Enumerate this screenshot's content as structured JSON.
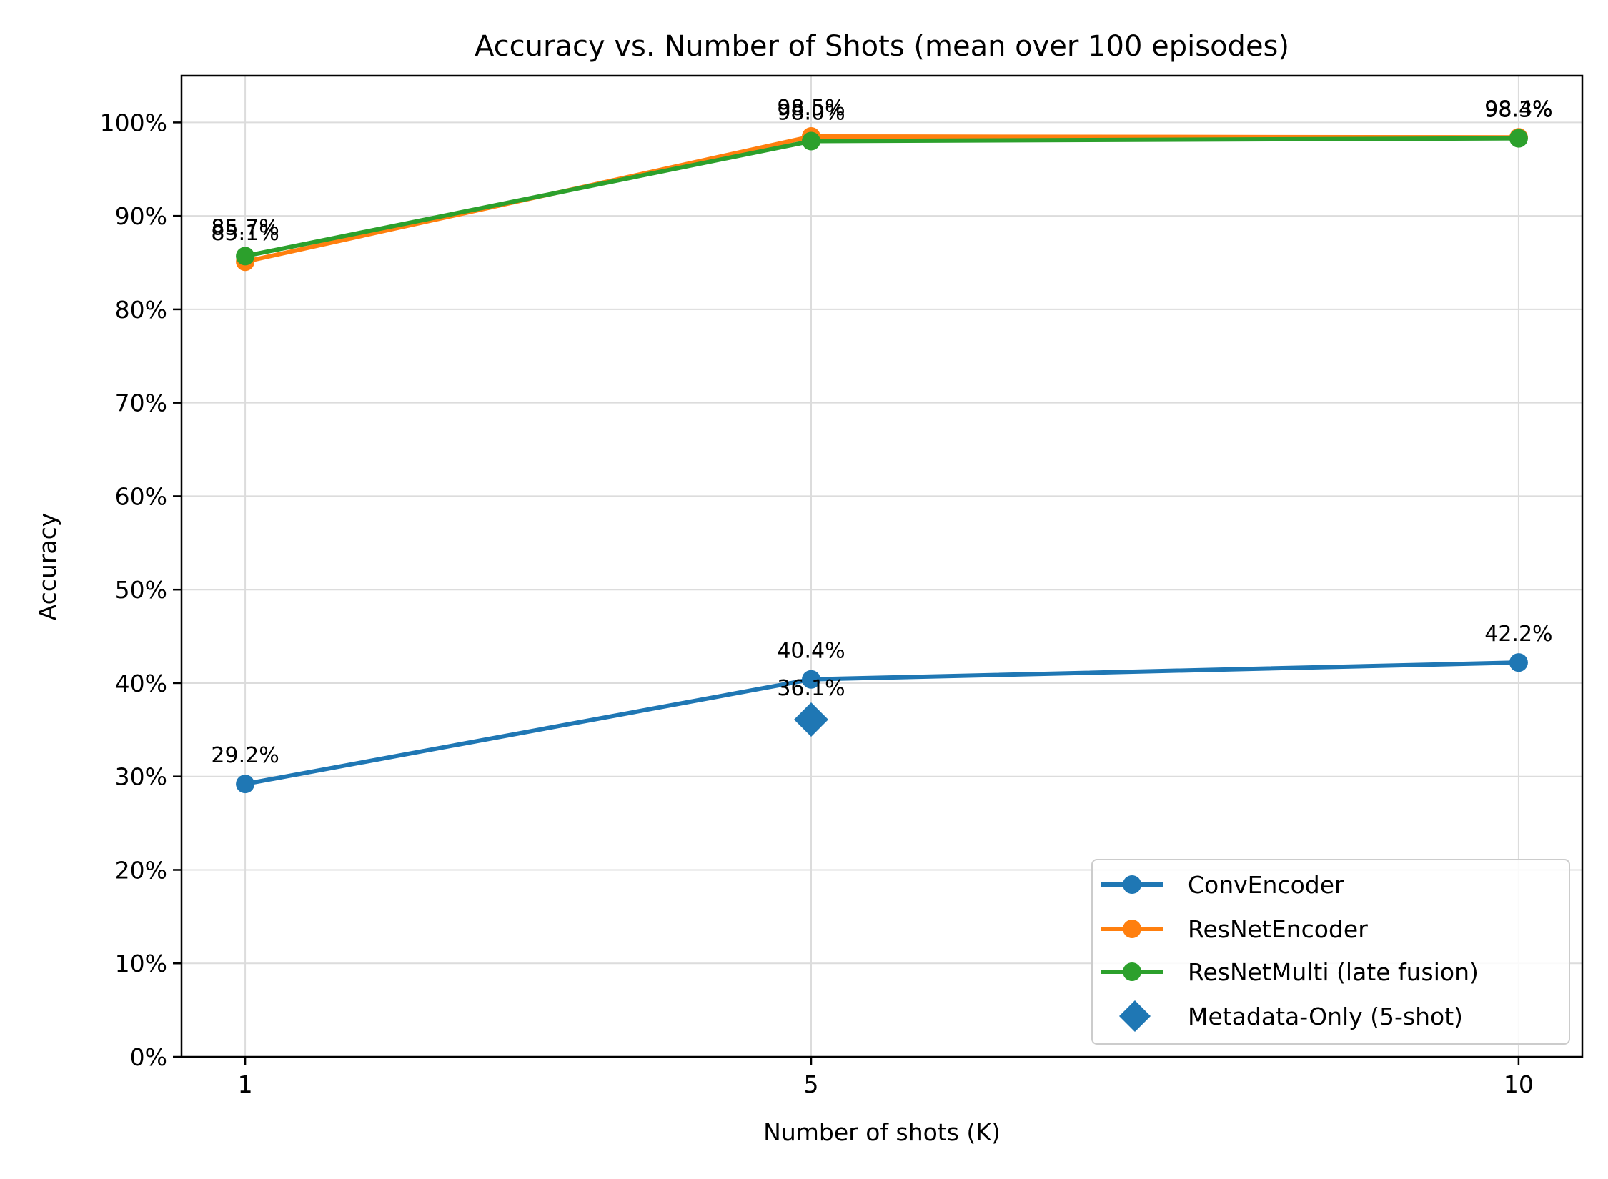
{
  "chart_data": {
    "type": "line",
    "title": "Accuracy vs. Number of Shots (mean over 100 episodes)",
    "xlabel": "Number of shots (K)",
    "ylabel": "Accuracy",
    "x": [
      1,
      5,
      10
    ],
    "x_tick_labels": [
      "1",
      "5",
      "10"
    ],
    "xlim": [
      0.55,
      10.45
    ],
    "ylim": [
      0,
      105
    ],
    "y_ticks": [
      0,
      10,
      20,
      30,
      40,
      50,
      60,
      70,
      80,
      90,
      100
    ],
    "y_tick_labels": [
      "0%",
      "10%",
      "20%",
      "30%",
      "40%",
      "50%",
      "60%",
      "70%",
      "80%",
      "90%",
      "100%"
    ],
    "grid": true,
    "legend_position": "lower-right",
    "series": [
      {
        "name": "ConvEncoder",
        "color": "#1f77b4",
        "marker": "circle",
        "values": [
          29.2,
          40.4,
          42.2
        ],
        "labels": [
          "29.2%",
          "40.4%",
          "42.2%"
        ]
      },
      {
        "name": "ResNetEncoder",
        "color": "#ff7f0e",
        "marker": "circle",
        "values": [
          85.1,
          98.5,
          98.4
        ],
        "labels": [
          "85.1%",
          "98.5%",
          "98.4%"
        ]
      },
      {
        "name": "ResNetMulti (late fusion)",
        "color": "#2ca02c",
        "marker": "circle",
        "values": [
          85.7,
          98.0,
          98.3
        ],
        "labels": [
          "85.7%",
          "98.0%",
          "98.3%"
        ]
      }
    ],
    "points": [
      {
        "name": "Metadata-Only (5-shot)",
        "color": "#1f77b4",
        "marker": "diamond",
        "x": 5,
        "value": 36.1,
        "label": "36.1%"
      }
    ]
  }
}
